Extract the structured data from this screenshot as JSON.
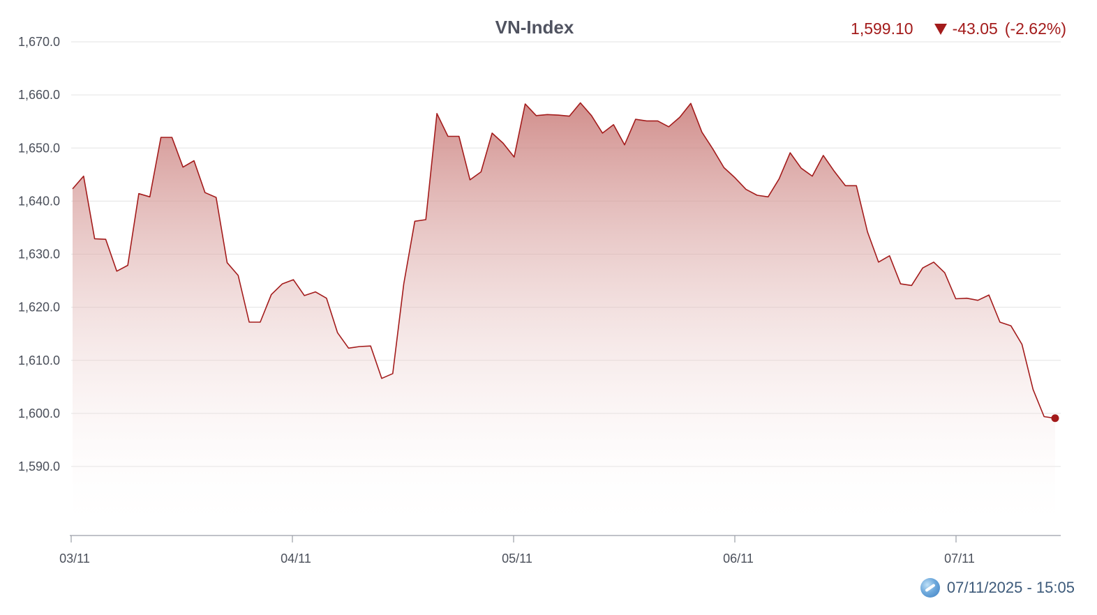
{
  "chart_data": {
    "type": "area",
    "title": "VN-Index",
    "quote": {
      "last": "1,599.10",
      "change": "-43.05",
      "change_pct": "(-2.62%)",
      "direction": "down"
    },
    "timestamp": "07/11/2025 - 15:05",
    "x_tick_labels": [
      "03/11",
      "04/11",
      "05/11",
      "06/11",
      "07/11"
    ],
    "y_tick_labels": [
      "1,590.0",
      "1,600.0",
      "1,610.0",
      "1,620.0",
      "1,630.0",
      "1,640.0",
      "1,650.0",
      "1,660.0",
      "1,670.0"
    ],
    "ylim": [
      1577.0,
      1670.0
    ],
    "grid": true,
    "legend": "none",
    "colors": {
      "line": "#a31b1b",
      "fill_top": "#c97b78",
      "fill_bottom": "#ffffff",
      "grid": "#e3e3e3",
      "axis": "#9a9ea6"
    },
    "series": [
      {
        "values": [
          1642.3,
          1644.7,
          1632.9,
          1632.8,
          1626.8,
          1627.9,
          1641.4,
          1640.8,
          1652.0,
          1652.0,
          1646.4,
          1647.6,
          1641.6,
          1640.7,
          1628.4,
          1626.0,
          1617.2,
          1617.2,
          1622.4,
          1624.4,
          1625.2,
          1622.2,
          1622.9,
          1621.7,
          1615.2,
          1612.3,
          1612.6,
          1612.7,
          1606.6,
          1607.5,
          1624.4,
          1636.2,
          1636.5,
          1656.5,
          1652.2,
          1652.2,
          1644.0,
          1645.5,
          1652.8,
          1650.9,
          1648.3,
          1658.3,
          1656.1,
          1656.3,
          1656.2,
          1656.0,
          1658.5,
          1656.1,
          1652.8,
          1654.4,
          1650.6,
          1655.4,
          1655.1,
          1655.1,
          1654.0,
          1655.8,
          1658.4,
          1653.0,
          1649.8,
          1646.3,
          1644.4,
          1642.2,
          1641.1,
          1640.8,
          1644.2,
          1649.1,
          1646.2,
          1644.7,
          1648.6,
          1645.6,
          1642.9,
          1642.9,
          1634.2,
          1628.5,
          1629.7,
          1624.4,
          1624.1,
          1627.4,
          1628.5,
          1626.5,
          1621.6,
          1621.7,
          1621.3,
          1622.3,
          1617.2,
          1616.5,
          1613.0,
          1604.5,
          1599.4,
          1599.1
        ]
      }
    ]
  }
}
